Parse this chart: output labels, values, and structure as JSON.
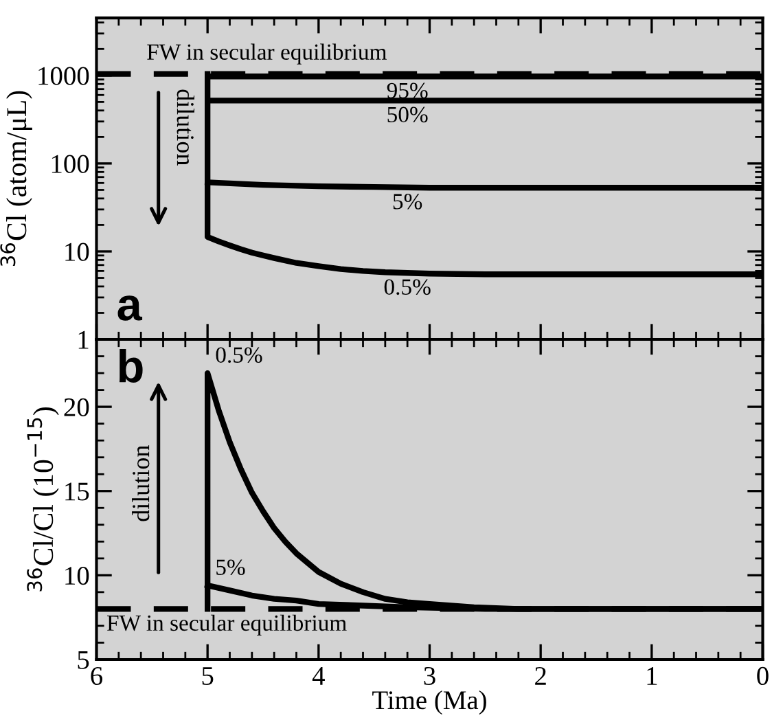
{
  "chart_data": [
    {
      "type": "line",
      "ylabel": "$^{36}$Cl (atom/μL)",
      "xlim": [
        6,
        0
      ],
      "xticks": [
        6,
        5,
        4,
        3,
        2,
        1,
        0
      ],
      "ylim": [
        1,
        4500
      ],
      "yticks": [
        1,
        10,
        100,
        1000
      ],
      "log": true,
      "tick_labels": "y",
      "grid": false,
      "marker": "none",
      "line_style": "solid",
      "annotations": [
        "dilution",
        "a"
      ],
      "ref_lines": [
        {
          "axis": "y",
          "value": 1040,
          "label": "FW in secular equilibrium",
          "color": "#000000",
          "line_style": "dashed"
        }
      ],
      "series": [
        {
          "name": "95%",
          "color": "#000000",
          "x": [
            5,
            0
          ],
          "values": [
            975,
            975
          ]
        },
        {
          "name": "50%",
          "color": "#000000",
          "x": [
            5,
            0
          ],
          "values": [
            519,
            519
          ]
        },
        {
          "name": "5%",
          "color": "#000000",
          "x": [
            5,
            4.5,
            4,
            3.5,
            3,
            2,
            1,
            0
          ],
          "values": [
            61,
            57,
            55,
            54,
            53,
            53,
            53,
            53
          ]
        },
        {
          "name": "0.5%",
          "color": "#000000",
          "x": [
            5,
            5,
            4.9,
            4.8,
            4.7,
            4.6,
            4.5,
            4.4,
            4.2,
            4.0,
            3.8,
            3.6,
            3.4,
            3.0,
            2.5,
            2.0,
            1.0,
            0
          ],
          "values": [
            1040,
            14.6,
            13.0,
            11.7,
            10.6,
            9.7,
            9.0,
            8.4,
            7.4,
            6.8,
            6.3,
            6.0,
            5.8,
            5.6,
            5.5,
            5.5,
            5.5,
            5.5
          ]
        }
      ]
    },
    {
      "type": "line",
      "ylabel": "$^{36}$Cl/Cl (10$^{−15}$)",
      "xlabel": "Time (Ma)",
      "xlim": [
        6,
        0
      ],
      "xticks": [
        6,
        5,
        4,
        3,
        2,
        1,
        0
      ],
      "ylim": [
        5,
        24
      ],
      "yticks": [
        5,
        10,
        15,
        20
      ],
      "grid": false,
      "marker": "none",
      "line_style": "solid",
      "annotations": [
        "dilution",
        "b"
      ],
      "ref_lines": [
        {
          "axis": "y",
          "value": 8,
          "label": "FW in secular equilibrium",
          "color": "#000000",
          "line_style": "dashed"
        }
      ],
      "series": [
        {
          "name": "0.5%",
          "color": "#000000",
          "x": [
            5,
            5,
            4.9,
            4.8,
            4.7,
            4.6,
            4.5,
            4.4,
            4.3,
            4.2,
            4.0,
            3.8,
            3.6,
            3.4,
            3.2,
            3.0,
            2.6,
            2.2,
            0
          ],
          "values": [
            8,
            22,
            19.8,
            17.9,
            16.3,
            14.9,
            13.8,
            12.8,
            12.0,
            11.3,
            10.2,
            9.5,
            9.0,
            8.6,
            8.4,
            8.3,
            8.1,
            8.0,
            8
          ]
        },
        {
          "name": "5%",
          "color": "#000000",
          "x": [
            5,
            4.8,
            4.6,
            4.4,
            4.2,
            4.0,
            3.6,
            3.2,
            2.5,
            0
          ],
          "values": [
            9.4,
            9.1,
            8.8,
            8.6,
            8.5,
            8.3,
            8.2,
            8.1,
            8,
            8
          ]
        }
      ]
    }
  ]
}
